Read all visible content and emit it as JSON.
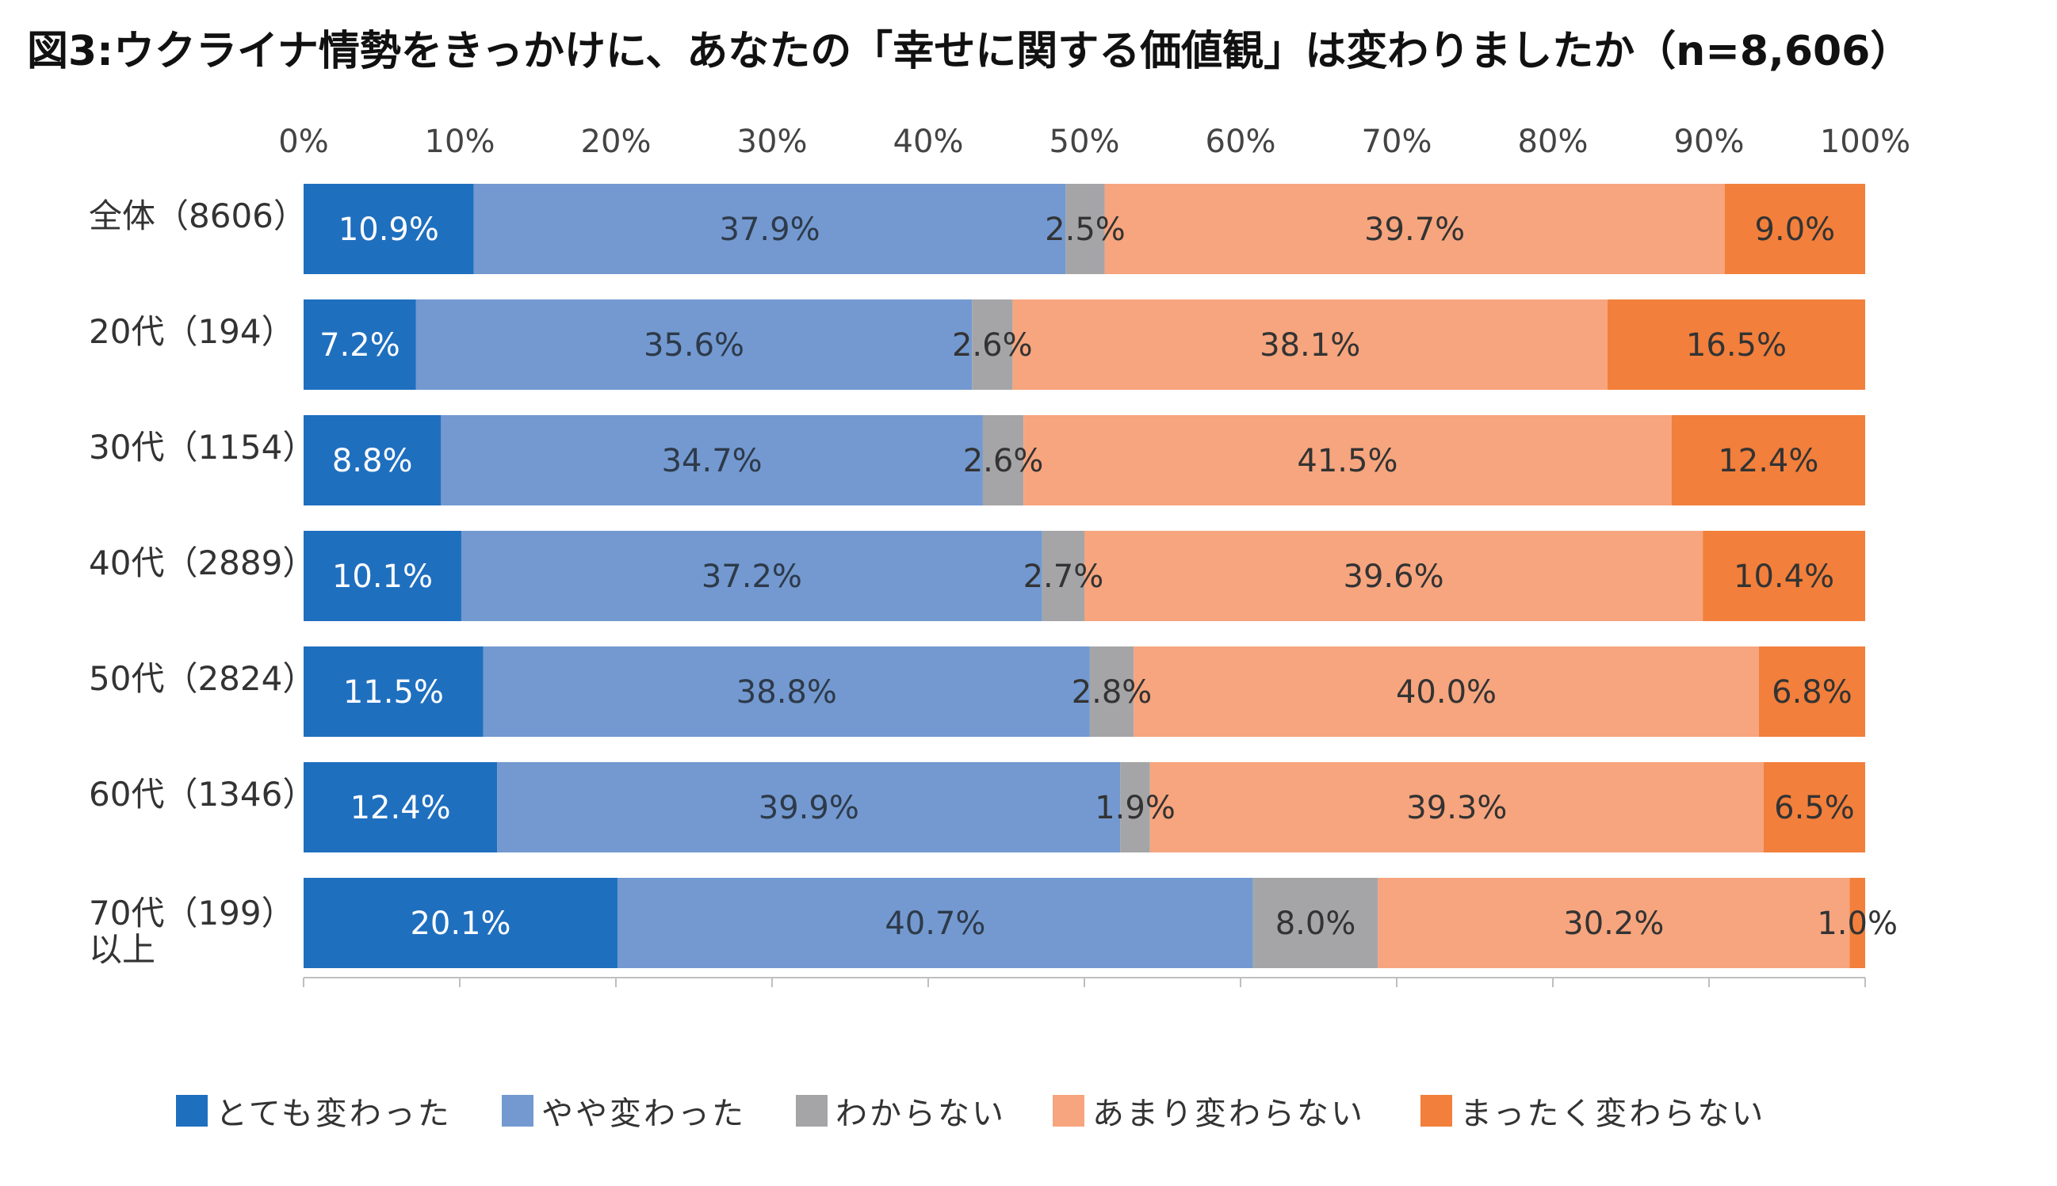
{
  "chart_data": {
    "type": "bar",
    "orientation": "horizontal",
    "stacked": "percent",
    "title": "図3:ウクライナ情勢をきっかけに、あなたの「幸せに関する価値観」は変わりましたか（n=8,606）",
    "xlabel": "",
    "ylabel": "",
    "xlim": [
      0,
      100
    ],
    "x_ticks": [
      "0%",
      "10%",
      "20%",
      "30%",
      "40%",
      "50%",
      "60%",
      "70%",
      "80%",
      "90%",
      "100%"
    ],
    "grid": false,
    "legend_position": "bottom",
    "categories": [
      {
        "line1": "全体（8606）",
        "line2": ""
      },
      {
        "line1": "20代（194）",
        "line2": ""
      },
      {
        "line1": "30代（1154）",
        "line2": ""
      },
      {
        "line1": "40代（2889）",
        "line2": ""
      },
      {
        "line1": "50代（2824）",
        "line2": ""
      },
      {
        "line1": "60代（1346）",
        "line2": ""
      },
      {
        "line1": "70代（199）",
        "line2": "以上"
      }
    ],
    "series": [
      {
        "name": "とても変わった",
        "color": "#1f6fbf",
        "text_color": "#ffffff",
        "values": [
          10.9,
          7.2,
          8.8,
          10.1,
          11.5,
          12.4,
          20.1
        ],
        "labels": [
          "10.9%",
          "7.2%",
          "8.8%",
          "10.1%",
          "11.5%",
          "12.4%",
          "20.1%"
        ]
      },
      {
        "name": "やや変わった",
        "color": "#7399d0",
        "text_color": "#2e3a4a",
        "values": [
          37.9,
          35.6,
          34.7,
          37.2,
          38.8,
          39.9,
          40.7
        ],
        "labels": [
          "37.9%",
          "35.6%",
          "34.7%",
          "37.2%",
          "38.8%",
          "39.9%",
          "40.7%"
        ]
      },
      {
        "name": "わからない",
        "color": "#a5a5a8",
        "text_color": "#333333",
        "values": [
          2.5,
          2.6,
          2.6,
          2.7,
          2.8,
          1.9,
          8.0
        ],
        "labels": [
          "2.5%",
          "2.6%",
          "2.6%",
          "2.7%",
          "2.8%",
          "1.9%",
          "8.0%"
        ]
      },
      {
        "name": "あまり変わらない",
        "color": "#f6a57e",
        "text_color": "#333333",
        "values": [
          39.7,
          38.1,
          41.5,
          39.6,
          40.0,
          39.3,
          30.2
        ],
        "labels": [
          "39.7%",
          "38.1%",
          "41.5%",
          "39.6%",
          "40.0%",
          "39.3%",
          "30.2%"
        ]
      },
      {
        "name": "まったく変わらない",
        "color": "#f27f3b",
        "text_color": "#333333",
        "values": [
          9.0,
          16.5,
          12.4,
          10.4,
          6.8,
          6.5,
          1.0
        ],
        "labels": [
          "9.0%",
          "16.5%",
          "12.4%",
          "10.4%",
          "6.8%",
          "6.5%",
          "1.0%"
        ]
      }
    ]
  }
}
